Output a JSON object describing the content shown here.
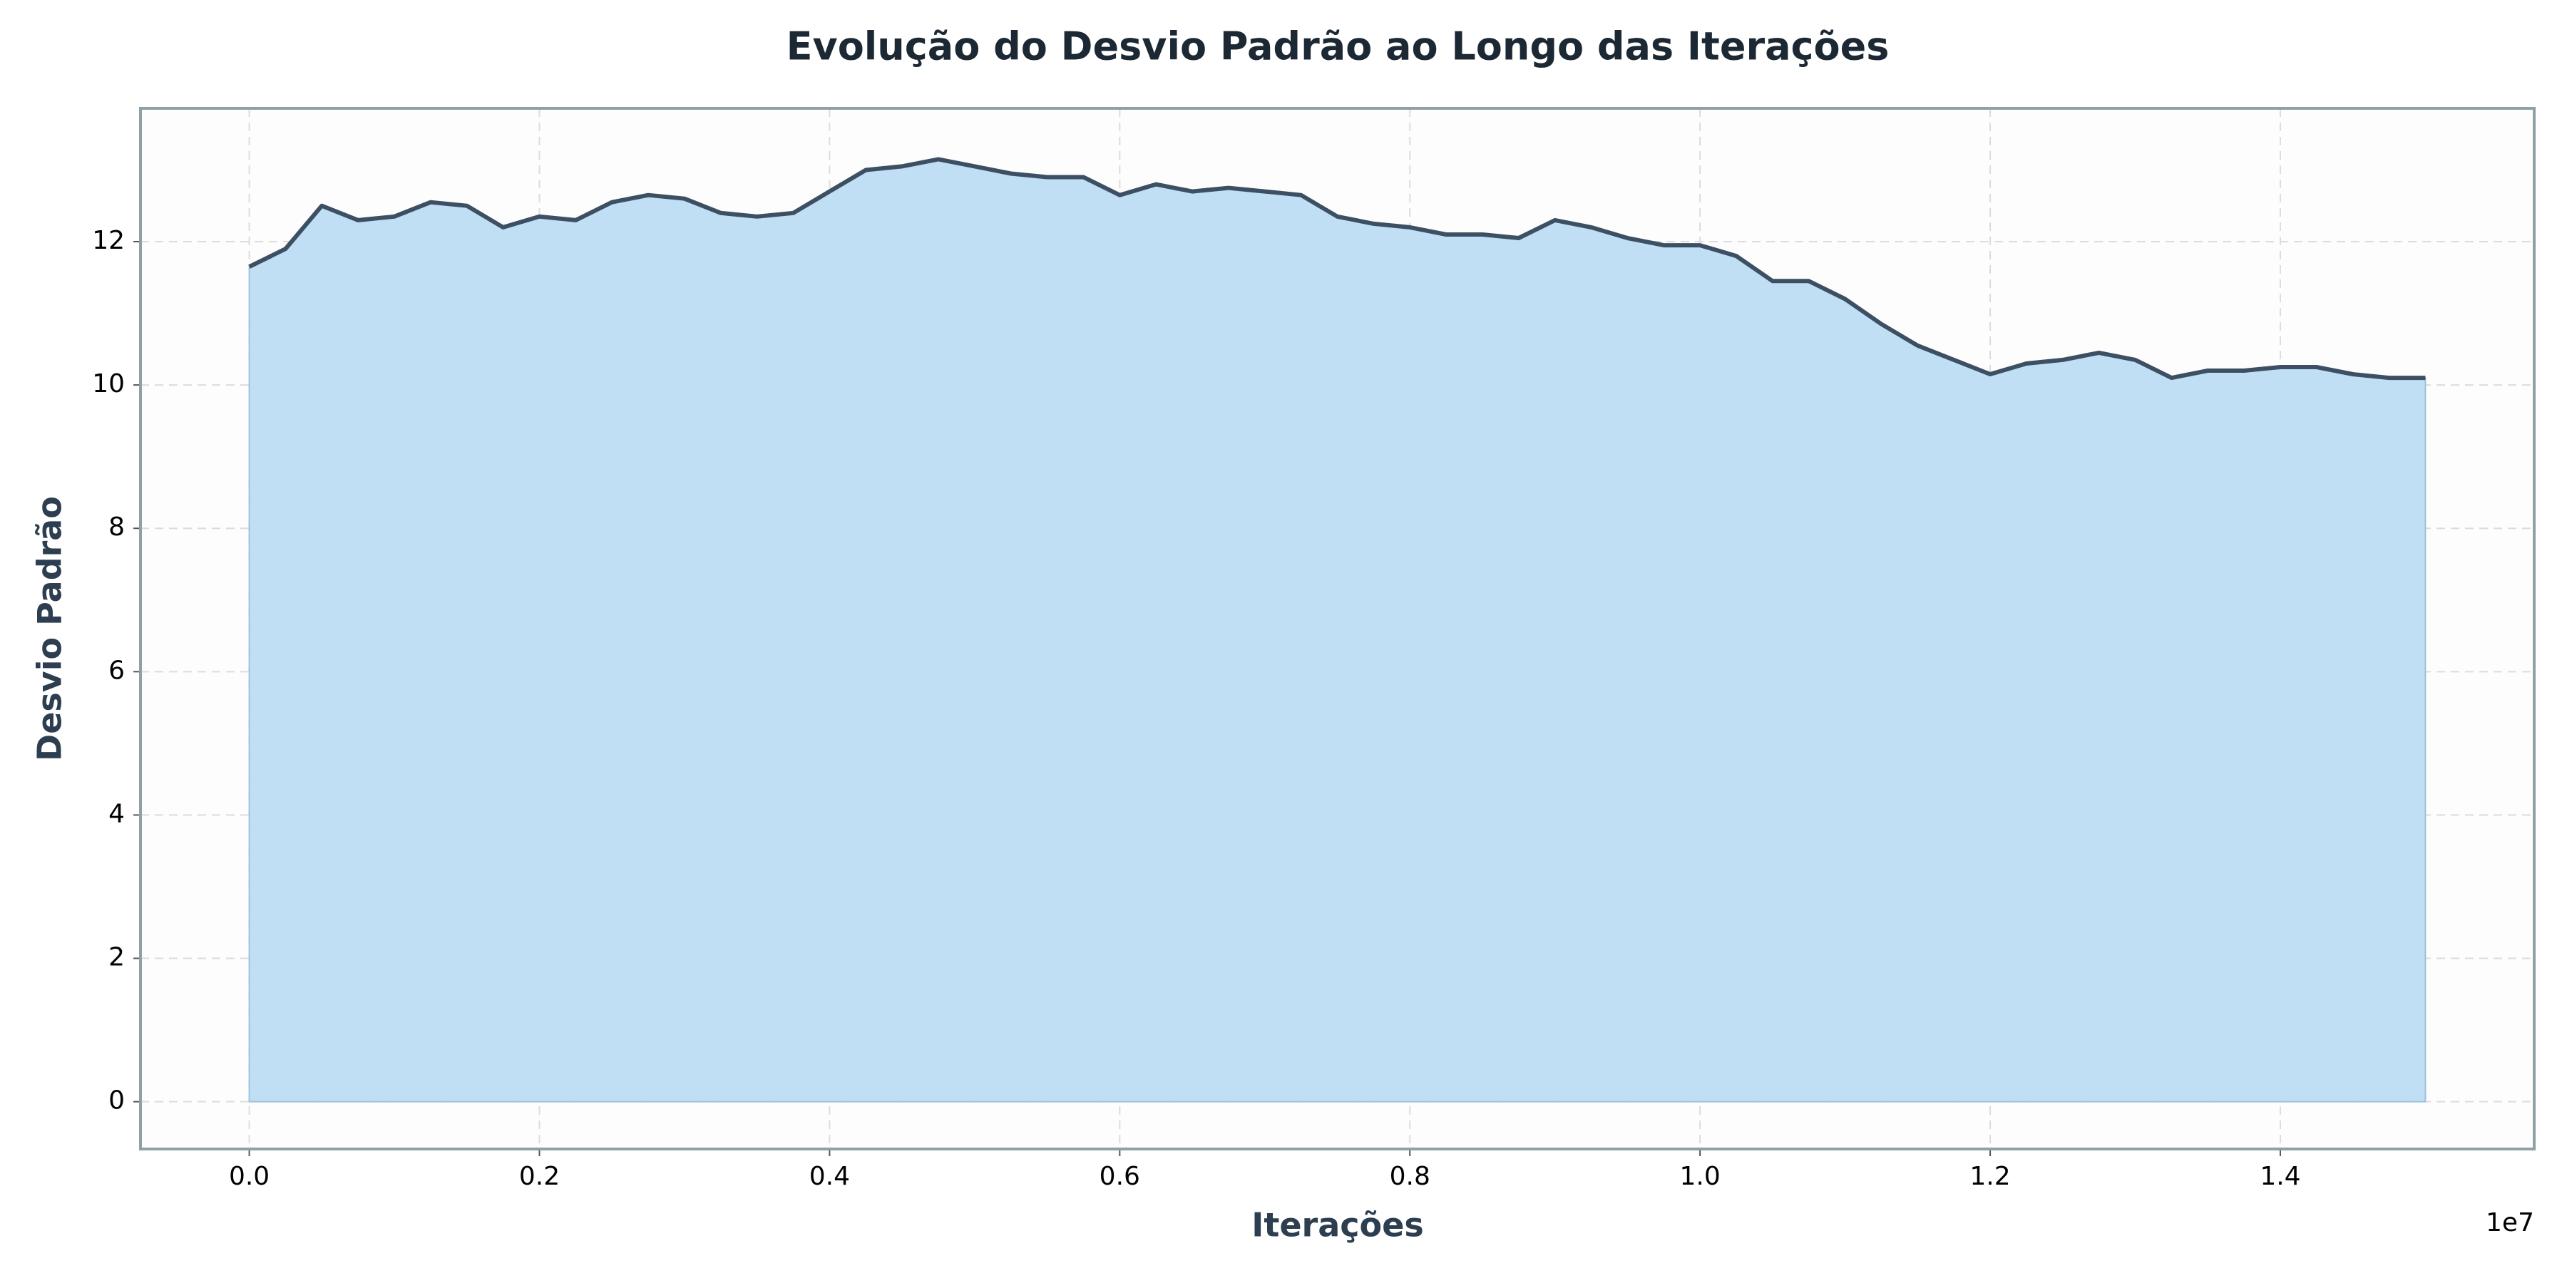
{
  "chart_data": {
    "type": "area",
    "title": "Evolução do Desvio Padrão ao Longo das Iterações",
    "xlabel": "Iterações",
    "ylabel": "Desvio Padrão",
    "x_offset_label": "1e7",
    "x": [
      0,
      250000,
      500000,
      750000,
      1000000,
      1250000,
      1500000,
      1750000,
      2000000,
      2250000,
      2500000,
      2750000,
      3000000,
      3250000,
      3500000,
      3750000,
      4000000,
      4250000,
      4500000,
      4750000,
      5000000,
      5250000,
      5500000,
      5750000,
      6000000,
      6250000,
      6500000,
      6750000,
      7000000,
      7250000,
      7500000,
      7750000,
      8000000,
      8250000,
      8500000,
      8750000,
      9000000,
      9250000,
      9500000,
      9750000,
      10000000,
      10250000,
      10500000,
      10750000,
      11000000,
      11250000,
      11500000,
      11750000,
      12000000,
      12250000,
      12500000,
      12750000,
      13000000,
      13250000,
      13500000,
      13750000,
      14000000,
      14250000,
      14500000,
      14750000,
      15000000
    ],
    "series": [
      {
        "color": "#3d4f63",
        "fill": "#c0dff4",
        "values": [
          11.65,
          11.9,
          12.5,
          12.3,
          12.35,
          12.55,
          12.5,
          12.2,
          12.35,
          12.3,
          12.55,
          12.65,
          12.6,
          12.4,
          12.35,
          12.4,
          12.7,
          13.0,
          13.05,
          13.15,
          13.05,
          12.95,
          12.9,
          12.9,
          12.65,
          12.8,
          12.7,
          12.75,
          12.7,
          12.65,
          12.35,
          12.25,
          12.2,
          12.1,
          12.1,
          12.05,
          12.3,
          12.2,
          12.05,
          11.95,
          11.95,
          11.8,
          11.45,
          11.45,
          11.2,
          10.85,
          10.55,
          10.35,
          10.15,
          10.3,
          10.35,
          10.45,
          10.35,
          10.1,
          10.2,
          10.2,
          10.25,
          10.25,
          10.15,
          10.1,
          10.1
        ]
      }
    ],
    "xlim": [
      -750000,
      15750000
    ],
    "xticks": [
      {
        "value": 0,
        "label": "0.0"
      },
      {
        "value": 2000000,
        "label": "0.2"
      },
      {
        "value": 4000000,
        "label": "0.4"
      },
      {
        "value": 6000000,
        "label": "0.6"
      },
      {
        "value": 8000000,
        "label": "0.8"
      },
      {
        "value": 10000000,
        "label": "1.0"
      },
      {
        "value": 12000000,
        "label": "1.2"
      },
      {
        "value": 14000000,
        "label": "1.4"
      }
    ],
    "ylim": [
      -0.66,
      13.86
    ],
    "yticks": [
      0,
      2,
      4,
      6,
      8,
      10,
      12
    ],
    "grid": true
  }
}
